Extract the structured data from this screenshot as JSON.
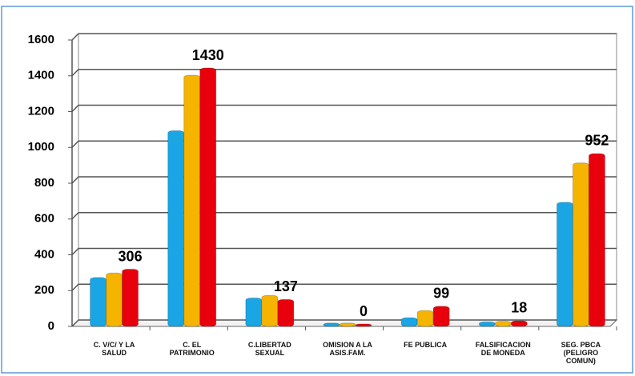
{
  "chart_data": {
    "type": "bar",
    "categories": [
      "C. V/C/ Y LA\nSALUD",
      "C. EL\nPATRIMONIO",
      "C.LIBERTAD\nSEXUAL",
      "OMISION A LA\nASIS.FAM.",
      "FE PUBLICA",
      "FALSIFICACION\nDE MONEDA",
      "SEG. PBCA\n(PELIGRO\nCOMUN)"
    ],
    "series": [
      {
        "color": "#1aa6e4",
        "values": [
          260,
          1080,
          145,
          5,
          35,
          12,
          680
        ],
        "show_labels": false
      },
      {
        "color": "#f5b400",
        "values": [
          285,
          1390,
          160,
          5,
          75,
          15,
          900
        ],
        "show_labels": false
      },
      {
        "color": "#e8000c",
        "values": [
          306,
          1430,
          137,
          0,
          99,
          18,
          952
        ],
        "show_labels": true
      }
    ],
    "ylim": [
      0,
      1600
    ],
    "yticks": [
      0,
      200,
      400,
      600,
      800,
      1000,
      1200,
      1400,
      1600
    ],
    "grid": true
  }
}
